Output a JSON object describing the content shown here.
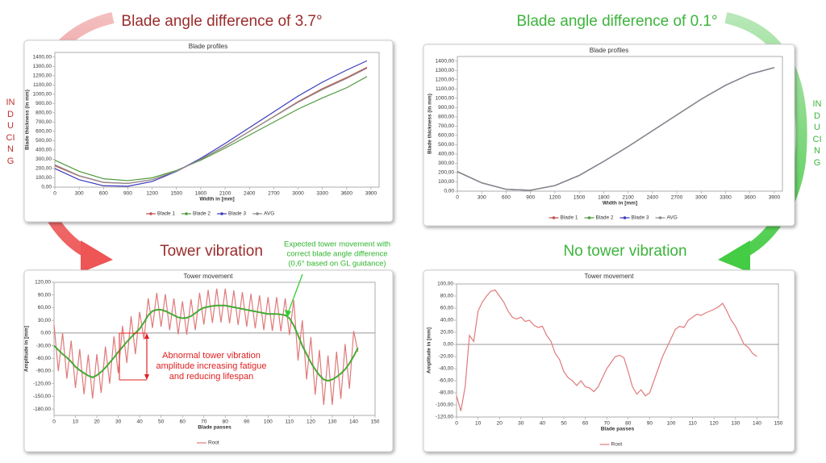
{
  "headings": {
    "left_title": "Blade angle difference of 3.7°",
    "right_title": "Blade angle difference of 0.1°",
    "left_result": "Tower vibration",
    "right_result": "No tower vibration",
    "left_side": "INDUCING",
    "right_side": "INDUCING"
  },
  "chart_data": [
    {
      "type": "line",
      "title": "Blade profiles",
      "x_label": "Width in [mm]",
      "y_label": "Blade thickness (in mm)",
      "x": [
        0,
        300,
        600,
        900,
        1200,
        1500,
        1800,
        2100,
        2400,
        2700,
        3000,
        3300,
        3600,
        3850
      ],
      "series": [
        {
          "name": "Blade 1",
          "color": "#c0504d",
          "values": [
            230,
            120,
            50,
            40,
            80,
            170,
            300,
            440,
            600,
            760,
            920,
            1060,
            1180,
            1290
          ]
        },
        {
          "name": "Blade 2",
          "color": "#4f9a3c",
          "values": [
            290,
            170,
            90,
            70,
            100,
            180,
            290,
            420,
            560,
            700,
            840,
            960,
            1070,
            1190
          ]
        },
        {
          "name": "Blade 3",
          "color": "#3b3bbd",
          "values": [
            200,
            80,
            15,
            10,
            60,
            170,
            310,
            470,
            640,
            810,
            980,
            1130,
            1260,
            1360
          ]
        },
        {
          "name": "AVG",
          "color": "#8c8c8c",
          "values": [
            240,
            123,
            52,
            40,
            80,
            173,
            300,
            443,
            600,
            757,
            913,
            1050,
            1170,
            1280
          ]
        }
      ],
      "xlim": [
        0,
        4000
      ],
      "xticks": [
        0,
        300,
        600,
        900,
        1200,
        1500,
        1800,
        2100,
        2400,
        2700,
        3000,
        3300,
        3600,
        3900
      ],
      "ylim": [
        0,
        1450
      ],
      "yticks": [
        {
          "value": 0,
          "label": "0,00"
        },
        {
          "value": 100,
          "label": "100,00"
        },
        {
          "value": 200,
          "label": "200,00"
        },
        {
          "value": 300,
          "label": "300,00"
        },
        {
          "value": 400,
          "label": "400,00"
        },
        {
          "value": 500,
          "label": "500,00"
        },
        {
          "value": 600,
          "label": "600,00"
        },
        {
          "value": 700,
          "label": "700,00"
        },
        {
          "value": 800,
          "label": "800,00"
        },
        {
          "value": 900,
          "label": "900,00"
        },
        {
          "value": 1000,
          "label": "1000,00"
        },
        {
          "value": 1100,
          "label": "1100,00"
        },
        {
          "value": 1200,
          "label": "1200,00"
        },
        {
          "value": 1300,
          "label": "1300,00"
        },
        {
          "value": 1400,
          "label": "1400,00"
        }
      ],
      "markers": true
    },
    {
      "type": "line",
      "title": "Blade profiles",
      "x_label": "Width in [mm]",
      "y_label": "Blade thickness (in mm)",
      "x": [
        0,
        300,
        600,
        900,
        1200,
        1500,
        1800,
        2100,
        2400,
        2700,
        3000,
        3300,
        3600,
        3900
      ],
      "series": [
        {
          "name": "Blade 1",
          "color": "#c0504d",
          "values": [
            210,
            90,
            20,
            10,
            60,
            170,
            320,
            480,
            650,
            820,
            990,
            1140,
            1260,
            1330
          ]
        },
        {
          "name": "Blade 2",
          "color": "#4f9a3c",
          "values": [
            212,
            91,
            21,
            11,
            61,
            171,
            321,
            481,
            651,
            821,
            991,
            1141,
            1261,
            1331
          ]
        },
        {
          "name": "Blade 3",
          "color": "#3b3bbd",
          "values": [
            209,
            89,
            19,
            9,
            59,
            169,
            319,
            479,
            649,
            819,
            989,
            1139,
            1259,
            1329
          ]
        },
        {
          "name": "AVG",
          "color": "#8c8c8c",
          "values": [
            210,
            90,
            20,
            10,
            60,
            170,
            320,
            480,
            650,
            820,
            990,
            1140,
            1260,
            1330
          ]
        }
      ],
      "xlim": [
        0,
        4000
      ],
      "xticks": [
        0,
        300,
        600,
        900,
        1200,
        1500,
        1800,
        2100,
        2400,
        2700,
        3000,
        3300,
        3600,
        3900
      ],
      "ylim": [
        0,
        1450
      ],
      "yticks": [
        {
          "value": 0,
          "label": "0,00"
        },
        {
          "value": 100,
          "label": "100,00"
        },
        {
          "value": 200,
          "label": "200,00"
        },
        {
          "value": 300,
          "label": "300,00"
        },
        {
          "value": 400,
          "label": "400,00"
        },
        {
          "value": 500,
          "label": "500,00"
        },
        {
          "value": 600,
          "label": "600,00"
        },
        {
          "value": 700,
          "label": "700,00"
        },
        {
          "value": 800,
          "label": "800,00"
        },
        {
          "value": 900,
          "label": "900,00"
        },
        {
          "value": 1000,
          "label": "1000,00"
        },
        {
          "value": 1100,
          "label": "1100,00"
        },
        {
          "value": 1200,
          "label": "1200,00"
        },
        {
          "value": 1300,
          "label": "1300,00"
        },
        {
          "value": 1400,
          "label": "1400,00"
        }
      ],
      "markers": true
    },
    {
      "type": "line",
      "title": "Tower movement",
      "x_label": "Blade passes",
      "y_label": "Amplitude in [mm]",
      "x": [
        0,
        2,
        4,
        6,
        8,
        10,
        12,
        14,
        16,
        18,
        20,
        22,
        24,
        26,
        28,
        30,
        32,
        34,
        36,
        38,
        40,
        42,
        44,
        46,
        48,
        50,
        52,
        54,
        56,
        58,
        60,
        62,
        64,
        66,
        68,
        70,
        72,
        74,
        76,
        78,
        80,
        82,
        84,
        86,
        88,
        90,
        92,
        94,
        96,
        98,
        100,
        102,
        104,
        106,
        108,
        110,
        112,
        114,
        116,
        118,
        120,
        122,
        124,
        126,
        128,
        130,
        132,
        134,
        136,
        138,
        140,
        142
      ],
      "series": [
        {
          "name": "Root",
          "color": "#e07a7a",
          "values": [
            20,
            -90,
            0,
            -108,
            -18,
            -130,
            -38,
            -145,
            -51,
            -155,
            -50,
            -142,
            -32,
            -120,
            -8,
            -95,
            17,
            -71,
            40,
            -50,
            50,
            -15,
            82,
            12,
            95,
            15,
            92,
            7,
            82,
            -3,
            75,
            -4,
            80,
            7,
            95,
            20,
            102,
            24,
            105,
            25,
            105,
            23,
            101,
            19,
            97,
            15,
            93,
            11,
            89,
            7,
            85,
            5,
            85,
            4,
            82,
            -5,
            78,
            -65,
            30,
            -110,
            -10,
            -146,
            -40,
            -170,
            -53,
            -170,
            -44,
            -156,
            -26,
            -132,
            5,
            -45
          ]
        },
        {
          "color": "#44aa33",
          "values": [
            -30,
            -40,
            -50,
            -58,
            -68,
            -80,
            -88,
            -95,
            -101,
            -105,
            -100,
            -92,
            -82,
            -70,
            -58,
            -45,
            -33,
            -21,
            -10,
            0,
            10,
            25,
            42,
            52,
            55,
            55,
            52,
            47,
            42,
            37,
            35,
            36,
            40,
            47,
            55,
            60,
            62,
            64,
            65,
            65,
            65,
            63,
            61,
            59,
            57,
            55,
            53,
            51,
            49,
            47,
            45,
            45,
            45,
            44,
            42,
            35,
            18,
            -5,
            -30,
            -50,
            -70,
            -86,
            -100,
            -110,
            -113,
            -110,
            -104,
            -96,
            -86,
            -72,
            -55,
            -35
          ]
        }
      ],
      "xlim": [
        0,
        150
      ],
      "xticks": [
        0,
        10,
        20,
        30,
        40,
        50,
        60,
        70,
        80,
        90,
        100,
        110,
        120,
        130,
        140,
        150
      ],
      "ylim": [
        -195,
        120
      ],
      "yticks": [
        {
          "value": 120,
          "label": "120,00"
        },
        {
          "value": 90,
          "label": "90,00"
        },
        {
          "value": 60,
          "label": "60,00"
        },
        {
          "value": 30,
          "label": "30,00"
        },
        {
          "value": 0,
          "label": "0,00"
        },
        {
          "value": -30,
          "label": "-30,00"
        },
        {
          "value": -60,
          "label": "-60,00"
        },
        {
          "value": -90,
          "label": "-90,00"
        },
        {
          "value": -120,
          "label": "-120,00"
        },
        {
          "value": -150,
          "label": "-150,00"
        },
        {
          "value": -180,
          "label": "-180,00"
        }
      ],
      "annotations": {
        "expected": [
          "Expected tower movement with",
          "correct blade angle difference",
          "(0,6° based on GL guidance)"
        ],
        "abnormal": [
          "Abnormal tower vibration",
          "amplitude increasing fatigue",
          "and reducing lifespan"
        ]
      }
    },
    {
      "type": "line",
      "title": "Tower movement",
      "x_label": "Blade passes",
      "y_label": "Amplitude in [mm]",
      "x": [
        0,
        2,
        4,
        6,
        8,
        10,
        12,
        14,
        16,
        18,
        20,
        22,
        24,
        26,
        28,
        30,
        32,
        34,
        36,
        38,
        40,
        42,
        44,
        46,
        48,
        50,
        52,
        54,
        56,
        58,
        60,
        62,
        64,
        66,
        68,
        70,
        72,
        74,
        76,
        78,
        80,
        82,
        84,
        86,
        88,
        90,
        92,
        94,
        96,
        98,
        100,
        102,
        104,
        106,
        108,
        110,
        112,
        114,
        116,
        118,
        120,
        122,
        124,
        126,
        128,
        130,
        132,
        134,
        136,
        138,
        140
      ],
      "series": [
        {
          "name": "Root",
          "color": "#e07a7a",
          "values": [
            -85,
            -110,
            -70,
            15,
            5,
            55,
            70,
            80,
            88,
            90,
            80,
            70,
            55,
            45,
            42,
            45,
            38,
            40,
            32,
            28,
            30,
            15,
            5,
            -15,
            -25,
            -45,
            -55,
            -60,
            -68,
            -60,
            -70,
            -72,
            -78,
            -70,
            -55,
            -40,
            -30,
            -20,
            -18,
            -22,
            -45,
            -70,
            -82,
            -75,
            -85,
            -80,
            -60,
            -40,
            -20,
            -5,
            10,
            25,
            30,
            28,
            40,
            45,
            50,
            48,
            52,
            55,
            58,
            62,
            68,
            55,
            40,
            30,
            15,
            0,
            -5,
            -15,
            -20
          ]
        }
      ],
      "xlim": [
        0,
        150
      ],
      "xticks": [
        0,
        10,
        20,
        30,
        40,
        50,
        60,
        70,
        80,
        90,
        100,
        110,
        120,
        130,
        140,
        150
      ],
      "ylim": [
        -120,
        100
      ],
      "yticks": [
        {
          "value": 100,
          "label": "100,00"
        },
        {
          "value": 80,
          "label": "80,00"
        },
        {
          "value": 60,
          "label": "60,00"
        },
        {
          "value": 40,
          "label": "40,00"
        },
        {
          "value": 20,
          "label": "20,00"
        },
        {
          "value": 0,
          "label": "0,00"
        },
        {
          "value": -20,
          "label": "-20,00"
        },
        {
          "value": -40,
          "label": "-40,00"
        },
        {
          "value": -60,
          "label": "-60,00"
        },
        {
          "value": -80,
          "label": "-80,00"
        },
        {
          "value": -100,
          "label": "-100,00"
        },
        {
          "value": -120,
          "label": "-120,00"
        }
      ]
    }
  ]
}
